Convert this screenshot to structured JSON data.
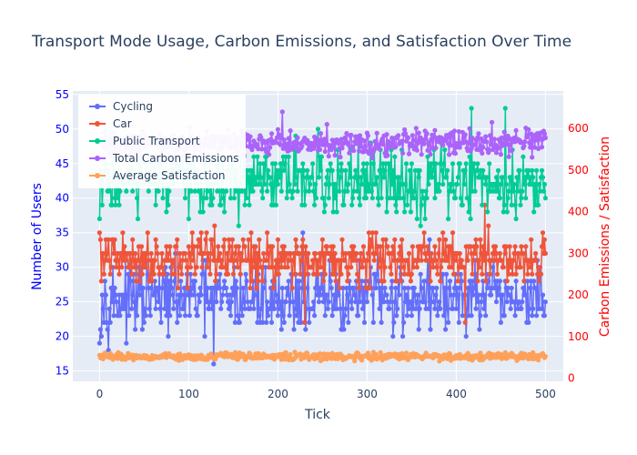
{
  "chart_data": {
    "type": "line",
    "title": "Transport Mode Usage, Carbon Emissions, and Satisfaction Over Time",
    "xlabel": "Tick",
    "ylabel_left": "Number of Users",
    "ylabel_right": "Carbon Emissions / Satisfaction",
    "xlim": [
      -30,
      520
    ],
    "ylim_left": [
      13.5,
      55.5
    ],
    "ylim_right": [
      -7.5,
      690
    ],
    "x_ticks": [
      0,
      100,
      200,
      300,
      400,
      500
    ],
    "y_left_ticks": [
      15,
      20,
      25,
      30,
      35,
      40,
      45,
      50,
      55
    ],
    "y_right_ticks": [
      0,
      100,
      200,
      300,
      400,
      500,
      600
    ],
    "grid": true,
    "legend_position": "top-left",
    "colors": {
      "left_axis": "#0000ff",
      "right_axis": "#ff0000",
      "plot_bg": "#e5ecf6",
      "grid": "#ffffff"
    },
    "series": [
      {
        "name": "Cycling",
        "axis": "left",
        "color": "#636efa",
        "base": 25.5,
        "amp": 4.6,
        "sparse": [
          [
            0,
            19
          ],
          [
            128,
            16
          ],
          [
            228,
            35
          ],
          [
            312,
            33
          ],
          [
            370,
            34
          ]
        ]
      },
      {
        "name": "Car",
        "axis": "left",
        "color": "#ef553b",
        "base": 31.3,
        "amp": 3.3,
        "sparse": [
          [
            0,
            35
          ],
          [
            5,
            29
          ],
          [
            120,
            35
          ],
          [
            230,
            22
          ],
          [
            410,
            22
          ],
          [
            432,
            39
          ]
        ]
      },
      {
        "name": "Public Transport",
        "axis": "left",
        "color": "#00cc96",
        "base": 42.2,
        "amp": 4.4,
        "sparse": [
          [
            0,
            37
          ],
          [
            220,
            49
          ],
          [
            245,
            50
          ],
          [
            417,
            53
          ],
          [
            455,
            53
          ],
          [
            500,
            40
          ]
        ]
      },
      {
        "name": "Total Carbon Emissions",
        "axis": "right",
        "color": "#ab63fa",
        "base": 565,
        "amp": 28,
        "sparse": [
          [
            0,
            565
          ],
          [
            205,
            640
          ],
          [
            255,
            610
          ],
          [
            415,
            600
          ],
          [
            440,
            615
          ]
        ]
      },
      {
        "name": "Average Satisfaction",
        "axis": "right",
        "color": "#ffa15a",
        "base": 52,
        "amp": 8,
        "sparse": [
          [
            0,
            55
          ]
        ]
      }
    ],
    "x_range": [
      0,
      500
    ]
  }
}
